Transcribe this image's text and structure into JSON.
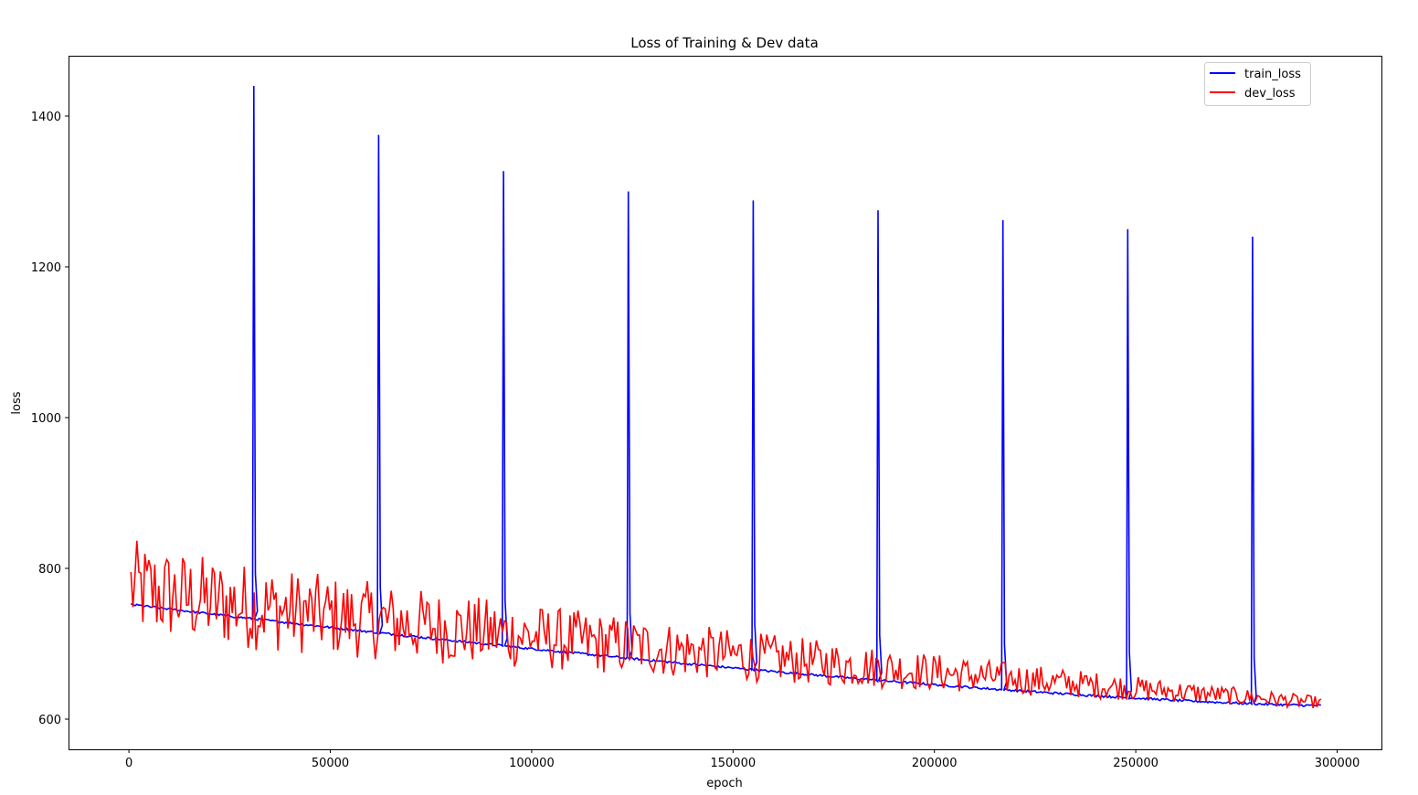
{
  "chart_data": {
    "type": "line",
    "title": "Loss of Training & Dev data",
    "xlabel": "epoch",
    "ylabel": "loss",
    "xlim": [
      -15000,
      311000
    ],
    "ylim": [
      560,
      1480
    ],
    "x_ticks": [
      0,
      50000,
      100000,
      150000,
      200000,
      250000,
      300000
    ],
    "x_tick_labels": [
      "0",
      "50000",
      "100000",
      "150000",
      "200000",
      "250000",
      "300000"
    ],
    "y_ticks": [
      600,
      800,
      1000,
      1200,
      1400
    ],
    "y_tick_labels": [
      "600",
      "800",
      "1000",
      "1200",
      "1400"
    ],
    "grid": false,
    "legend_position": "top-right",
    "series": [
      {
        "name": "train_loss",
        "color": "#0000ff",
        "x_start": 500,
        "x_end": 296000,
        "y_start": 752,
        "y_end": 618,
        "spikes": [
          {
            "x": 31000,
            "y": 1440
          },
          {
            "x": 62000,
            "y": 1375
          },
          {
            "x": 93000,
            "y": 1327
          },
          {
            "x": 124000,
            "y": 1300
          },
          {
            "x": 155000,
            "y": 1288
          },
          {
            "x": 186000,
            "y": 1275
          },
          {
            "x": 217000,
            "y": 1262
          },
          {
            "x": 248000,
            "y": 1250
          },
          {
            "x": 279000,
            "y": 1240
          }
        ]
      },
      {
        "name": "dev_loss",
        "color": "#ff0000",
        "x_start": 500,
        "x_end": 296000,
        "y_start": 795,
        "y_end": 622,
        "noise_amplitude_start": 65,
        "noise_amplitude_end": 8,
        "point_count": 600
      }
    ]
  }
}
